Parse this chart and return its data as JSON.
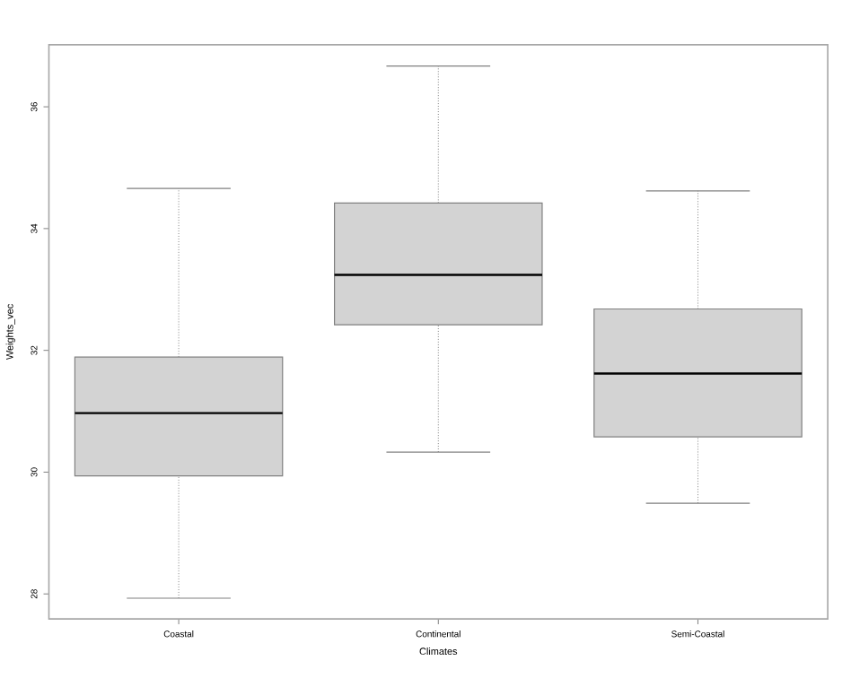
{
  "chart_data": {
    "type": "box",
    "xlabel": "Climates",
    "ylabel": "Weights_vec",
    "categories": [
      "Coastal",
      "Continental",
      "Semi-Coastal"
    ],
    "boxes": [
      {
        "low": 27.93,
        "q1": 29.94,
        "median": 30.97,
        "q3": 31.89,
        "high": 34.66
      },
      {
        "low": 30.33,
        "q1": 32.42,
        "median": 33.24,
        "q3": 34.42,
        "high": 36.67
      },
      {
        "low": 29.49,
        "q1": 30.58,
        "median": 31.62,
        "q3": 32.68,
        "high": 34.62
      }
    ],
    "color": "#d3d3d3",
    "ylim": [
      27.59,
      37.02
    ],
    "yticks": [
      28,
      30,
      32,
      34,
      36
    ],
    "grid": false
  }
}
